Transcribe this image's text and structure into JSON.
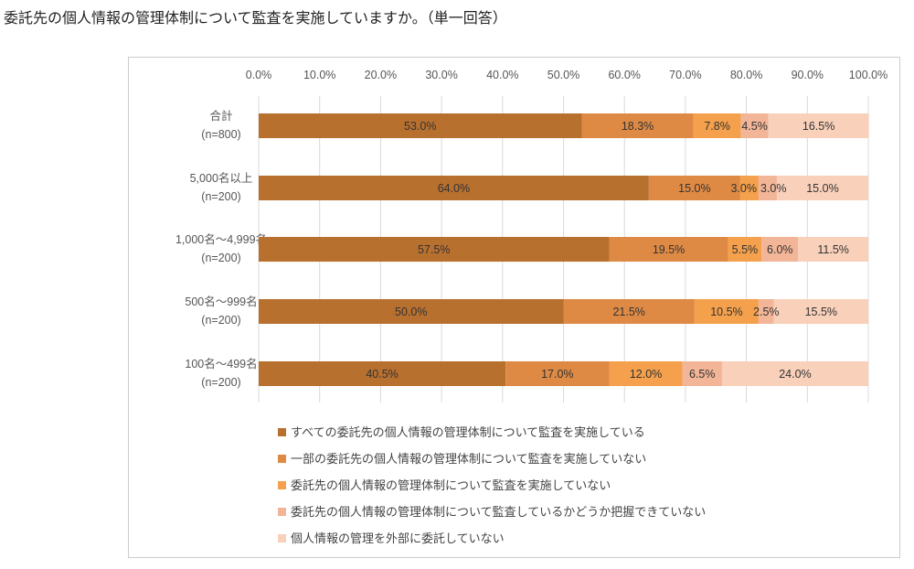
{
  "title": "委託先の個人情報の管理体制について監査を実施していますか。（単一回答）",
  "chart_data": {
    "type": "bar",
    "orientation": "horizontal-stacked-100",
    "xlim": [
      0,
      100
    ],
    "xticks": [
      "0.0%",
      "10.0%",
      "20.0%",
      "30.0%",
      "40.0%",
      "50.0%",
      "60.0%",
      "70.0%",
      "80.0%",
      "90.0%",
      "100.0%"
    ],
    "categories": [
      [
        "合計",
        "(n=800)"
      ],
      [
        "5,000名以上",
        "(n=200)"
      ],
      [
        "1,000名～4,999名",
        "(n=200)"
      ],
      [
        "500名～999名",
        "(n=200)"
      ],
      [
        "100名～499名",
        "(n=200)"
      ]
    ],
    "series": [
      {
        "name": "すべての委託先の個人情報の管理体制について監査を実施している",
        "color": "#b8702f",
        "values": [
          53.0,
          64.0,
          57.5,
          50.0,
          40.5
        ]
      },
      {
        "name": "一部の委託先の個人情報の管理体制について監査を実施していない",
        "color": "#df8a44",
        "values": [
          18.3,
          15.0,
          19.5,
          21.5,
          17.0
        ]
      },
      {
        "name": "委託先の個人情報の管理体制について監査を実施していない",
        "color": "#f4a04c",
        "values": [
          7.8,
          3.0,
          5.5,
          10.5,
          12.0
        ]
      },
      {
        "name": "委託先の個人情報の管理体制について監査しているかどうか把握できていない",
        "color": "#f2b597",
        "values": [
          4.5,
          3.0,
          6.0,
          2.5,
          6.5
        ]
      },
      {
        "name": "個人情報の管理を外部に委託していない",
        "color": "#f9d0ba",
        "values": [
          16.5,
          15.0,
          11.5,
          15.5,
          24.0
        ]
      }
    ],
    "legend": "bottom",
    "grid": true
  }
}
